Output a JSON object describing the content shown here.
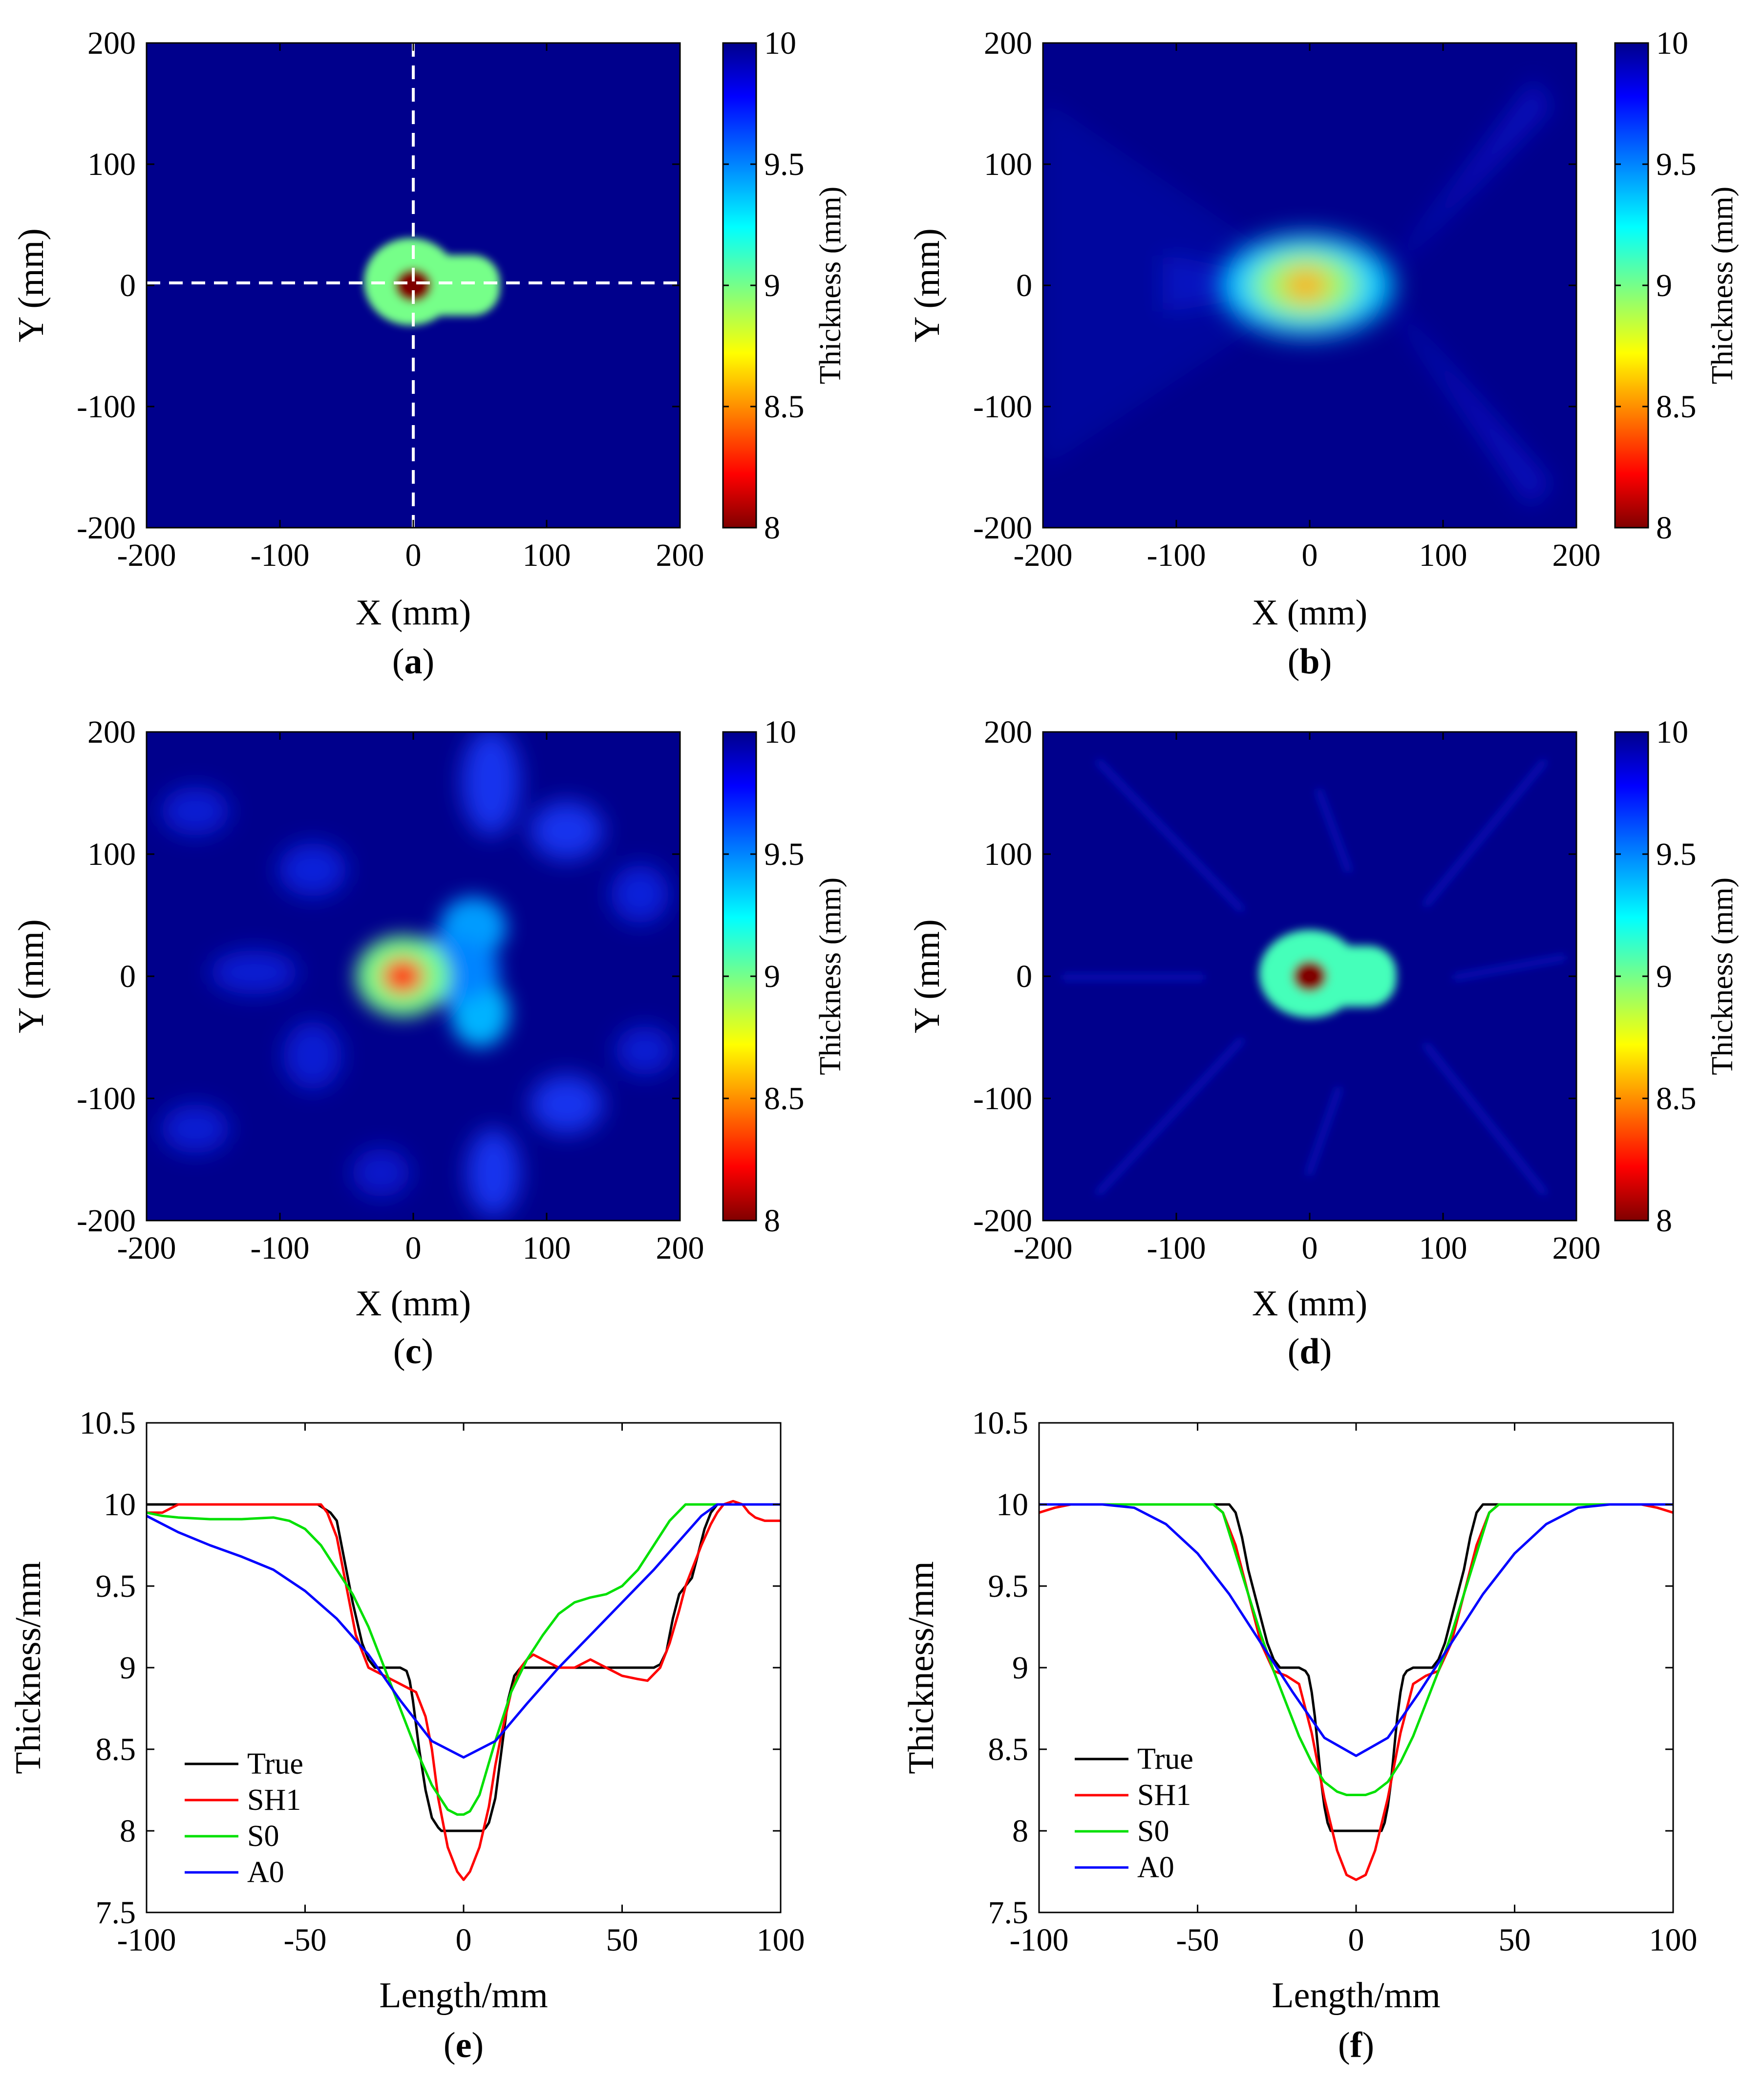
{
  "colors": {
    "true": "#000000",
    "sh1": "#ff0000",
    "s0": "#00e000",
    "a0": "#0000ff",
    "background": "#00008c",
    "dashed": "#ffffff"
  },
  "chart_data": [
    {
      "id": "a",
      "panel_label": "a",
      "type": "heatmap",
      "xlabel": "X (mm)",
      "ylabel": "Y (mm)",
      "xlim": [
        -200,
        200
      ],
      "ylim": [
        -200,
        200
      ],
      "xticks": [
        "-200",
        "-100",
        "0",
        "100",
        "200"
      ],
      "yticks": [
        "-200",
        "-100",
        "0",
        "100",
        "200"
      ],
      "colorbar": {
        "label": "Thickness (mm)",
        "min": 8,
        "max": 10,
        "ticks": [
          "8",
          "8.5",
          "9",
          "9.5",
          "10"
        ]
      },
      "dashed_cross": {
        "x": 0,
        "y": 2
      },
      "features": [
        {
          "shape": "rect",
          "cx": 15,
          "cy": 0,
          "w": 100,
          "h": 50,
          "value": 9.0
        },
        {
          "shape": "blob",
          "cx": -2,
          "cy": 3,
          "rx": 35,
          "ry": 36,
          "value": 9.0
        },
        {
          "shape": "blob",
          "cx": 0,
          "cy": 0,
          "rx": 14,
          "ry": 14,
          "value": 8.0
        }
      ]
    },
    {
      "id": "b",
      "panel_label": "b",
      "type": "heatmap",
      "xlabel": "X (mm)",
      "ylabel": "Y (mm)",
      "xlim": [
        -200,
        200
      ],
      "ylim": [
        -200,
        200
      ],
      "xticks": [
        "-200",
        "-100",
        "0",
        "100",
        "200"
      ],
      "yticks": [
        "-200",
        "-100",
        "0",
        "100",
        "200"
      ],
      "colorbar": {
        "label": "Thickness (mm)",
        "min": 8,
        "max": 10,
        "ticks": [
          "8",
          "8.5",
          "9",
          "9.5",
          "10"
        ]
      },
      "features": [
        {
          "shape": "blob",
          "cx": -2,
          "cy": 0,
          "rx": 65,
          "ry": 42,
          "value": 9.35
        },
        {
          "shape": "blob",
          "cx": -3,
          "cy": 0,
          "rx": 40,
          "ry": 28,
          "value": 8.95
        },
        {
          "shape": "blob",
          "cx": -3,
          "cy": 0,
          "rx": 18,
          "ry": 14,
          "value": 8.55
        }
      ]
    },
    {
      "id": "c",
      "panel_label": "c",
      "type": "heatmap",
      "xlabel": "X (mm)",
      "ylabel": "Y (mm)",
      "xlim": [
        -200,
        200
      ],
      "ylim": [
        -200,
        200
      ],
      "xticks": [
        "-200",
        "-100",
        "0",
        "100",
        "200"
      ],
      "yticks": [
        "-200",
        "-100",
        "0",
        "100",
        "200"
      ],
      "colorbar": {
        "label": "Thickness (mm)",
        "min": 8,
        "max": 10,
        "ticks": [
          "8",
          "8.5",
          "9",
          "9.5",
          "10"
        ]
      },
      "features": [
        {
          "shape": "blob",
          "cx": 45,
          "cy": 40,
          "rx": 25,
          "ry": 25,
          "value": 9.45
        },
        {
          "shape": "blob",
          "cx": 50,
          "cy": -30,
          "rx": 22,
          "ry": 28,
          "value": 9.4
        },
        {
          "shape": "blob",
          "cx": 20,
          "cy": 5,
          "rx": 45,
          "ry": 28,
          "value": 9.5
        },
        {
          "shape": "blob",
          "cx": -8,
          "cy": 0,
          "rx": 35,
          "ry": 33,
          "value": 9.0
        },
        {
          "shape": "blob",
          "cx": -8,
          "cy": 0,
          "rx": 16,
          "ry": 15,
          "value": 8.3
        }
      ]
    },
    {
      "id": "d",
      "panel_label": "d",
      "type": "heatmap",
      "xlabel": "X (mm)",
      "ylabel": "Y (mm)",
      "xlim": [
        -200,
        200
      ],
      "ylim": [
        -200,
        200
      ],
      "xticks": [
        "-200",
        "-100",
        "0",
        "100",
        "200"
      ],
      "yticks": [
        "-200",
        "-100",
        "0",
        "100",
        "200"
      ],
      "colorbar": {
        "label": "Thickness (mm)",
        "min": 8,
        "max": 10,
        "ticks": [
          "8",
          "8.5",
          "9",
          "9.5",
          "10"
        ]
      },
      "features": [
        {
          "shape": "rect",
          "cx": 15,
          "cy": 0,
          "w": 100,
          "h": 50,
          "value": 9.1
        },
        {
          "shape": "blob",
          "cx": 0,
          "cy": 2,
          "rx": 38,
          "ry": 36,
          "value": 9.1
        },
        {
          "shape": "blob",
          "cx": 0,
          "cy": 0,
          "rx": 13,
          "ry": 13,
          "value": 8.0
        }
      ]
    },
    {
      "id": "e",
      "panel_label": "e",
      "type": "line",
      "xlabel": "Length/mm",
      "ylabel": "Thickness/mm",
      "xlim": [
        -100,
        100
      ],
      "ylim": [
        7.5,
        10.5
      ],
      "xticks": [
        "-100",
        "-50",
        "0",
        "50",
        "100"
      ],
      "yticks": [
        "7.5",
        "8",
        "8.5",
        "9",
        "9.5",
        "10",
        "10.5"
      ],
      "legend": [
        "True",
        "SH1",
        "S0",
        "A0"
      ],
      "series": [
        {
          "name": "True",
          "color_key": "true",
          "x": [
            -100,
            -46,
            -42,
            -40,
            -38,
            -35,
            -32,
            -30,
            -28,
            -25,
            -22,
            -20,
            -18,
            -17,
            -16,
            -14,
            -12,
            -10,
            -8,
            -7,
            -6,
            -5,
            0,
            5,
            6,
            7,
            8,
            10,
            12,
            14,
            16,
            18,
            20,
            22,
            25,
            30,
            40,
            50,
            55,
            60,
            62,
            64,
            65,
            66,
            68,
            70,
            72,
            74,
            76,
            78,
            80,
            82,
            84,
            100
          ],
          "y": [
            10,
            10,
            9.95,
            9.9,
            9.7,
            9.4,
            9.15,
            9.05,
            9.0,
            9.0,
            9.0,
            9.0,
            8.98,
            8.92,
            8.8,
            8.5,
            8.25,
            8.08,
            8.02,
            8.0,
            8.0,
            8.0,
            8.0,
            8.0,
            8.0,
            8.02,
            8.05,
            8.2,
            8.5,
            8.8,
            8.95,
            9.0,
            9.0,
            9.0,
            9.0,
            9.0,
            9.0,
            9.0,
            9.0,
            9.0,
            9.02,
            9.1,
            9.2,
            9.3,
            9.45,
            9.5,
            9.55,
            9.7,
            9.85,
            9.95,
            10.0,
            10.0,
            10.0,
            10.0
          ]
        },
        {
          "name": "SH1",
          "color_key": "sh1",
          "x": [
            -100,
            -95,
            -90,
            -45,
            -43,
            -40,
            -37,
            -34,
            -30,
            -25,
            -22,
            -20,
            -18,
            -15,
            -12,
            -10,
            -8,
            -5,
            -2,
            0,
            2,
            5,
            8,
            10,
            12,
            15,
            18,
            20,
            22,
            25,
            30,
            35,
            40,
            45,
            50,
            55,
            58,
            62,
            65,
            68,
            70,
            72,
            75,
            78,
            80,
            82,
            85,
            88,
            90,
            92,
            95,
            100
          ],
          "y": [
            9.95,
            9.95,
            10.0,
            10.0,
            9.95,
            9.8,
            9.5,
            9.2,
            9.0,
            8.95,
            8.92,
            8.9,
            8.88,
            8.85,
            8.7,
            8.5,
            8.2,
            7.9,
            7.75,
            7.7,
            7.75,
            7.9,
            8.15,
            8.4,
            8.6,
            8.85,
            9.0,
            9.05,
            9.08,
            9.05,
            9.0,
            9.0,
            9.05,
            9.0,
            8.95,
            8.93,
            8.92,
            9.0,
            9.15,
            9.35,
            9.5,
            9.6,
            9.75,
            9.88,
            9.95,
            10.0,
            10.02,
            10.0,
            9.95,
            9.92,
            9.9,
            9.9
          ]
        },
        {
          "name": "S0",
          "color_key": "s0",
          "x": [
            -100,
            -95,
            -90,
            -80,
            -70,
            -60,
            -55,
            -50,
            -45,
            -40,
            -35,
            -30,
            -25,
            -20,
            -15,
            -10,
            -5,
            -2,
            0,
            2,
            5,
            10,
            15,
            20,
            25,
            30,
            35,
            40,
            45,
            50,
            55,
            60,
            65,
            70,
            75,
            80,
            100
          ],
          "y": [
            9.95,
            9.93,
            9.92,
            9.91,
            9.91,
            9.92,
            9.9,
            9.85,
            9.75,
            9.6,
            9.45,
            9.25,
            9.0,
            8.75,
            8.5,
            8.28,
            8.13,
            8.1,
            8.1,
            8.12,
            8.22,
            8.55,
            8.85,
            9.05,
            9.2,
            9.33,
            9.4,
            9.43,
            9.45,
            9.5,
            9.6,
            9.75,
            9.9,
            10.0,
            10.0,
            10.0,
            10.0
          ]
        },
        {
          "name": "A0",
          "color_key": "a0",
          "x": [
            -100,
            -95,
            -90,
            -80,
            -70,
            -60,
            -50,
            -40,
            -30,
            -20,
            -10,
            0,
            10,
            20,
            30,
            40,
            50,
            60,
            70,
            75,
            80,
            100
          ],
          "y": [
            9.93,
            9.88,
            9.83,
            9.75,
            9.68,
            9.6,
            9.47,
            9.3,
            9.08,
            8.8,
            8.55,
            8.45,
            8.55,
            8.78,
            9.0,
            9.2,
            9.4,
            9.6,
            9.82,
            9.93,
            10.0,
            10.0
          ]
        }
      ]
    },
    {
      "id": "f",
      "panel_label": "f",
      "type": "line",
      "xlabel": "Length/mm",
      "ylabel": "Thickness/mm",
      "xlim": [
        -100,
        100
      ],
      "ylim": [
        7.5,
        10.5
      ],
      "xticks": [
        "-100",
        "-50",
        "0",
        "50",
        "100"
      ],
      "yticks": [
        "7.5",
        "8",
        "8.5",
        "9",
        "9.5",
        "10",
        "10.5"
      ],
      "legend": [
        "True",
        "SH1",
        "S0",
        "A0"
      ],
      "series": [
        {
          "name": "True",
          "color_key": "true",
          "x": [
            -100,
            -40,
            -38,
            -36,
            -34,
            -30,
            -28,
            -26,
            -24,
            -22,
            -20,
            -18,
            -16,
            -15,
            -14,
            -13,
            -12,
            -11,
            -10,
            -9,
            -8,
            -6,
            0,
            6,
            8,
            9,
            10,
            11,
            12,
            13,
            14,
            15,
            16,
            18,
            20,
            22,
            24,
            26,
            28,
            30,
            34,
            36,
            38,
            40,
            100
          ],
          "y": [
            10,
            10,
            9.95,
            9.8,
            9.6,
            9.3,
            9.15,
            9.05,
            9.0,
            9.0,
            9.0,
            9.0,
            8.98,
            8.95,
            8.85,
            8.7,
            8.5,
            8.3,
            8.15,
            8.05,
            8.0,
            8.0,
            8.0,
            8.0,
            8.0,
            8.05,
            8.15,
            8.3,
            8.5,
            8.7,
            8.85,
            8.95,
            8.98,
            9.0,
            9.0,
            9.0,
            9.0,
            9.05,
            9.15,
            9.3,
            9.6,
            9.8,
            9.95,
            10.0,
            10.0
          ]
        },
        {
          "name": "SH1",
          "color_key": "sh1",
          "x": [
            -100,
            -95,
            -90,
            -80,
            -45,
            -42,
            -38,
            -34,
            -30,
            -26,
            -22,
            -18,
            -14,
            -10,
            -6,
            -3,
            0,
            3,
            6,
            10,
            14,
            18,
            22,
            26,
            30,
            34,
            38,
            42,
            45,
            80,
            90,
            95,
            100
          ],
          "y": [
            9.95,
            9.98,
            10.0,
            10.0,
            10.0,
            9.95,
            9.75,
            9.45,
            9.15,
            8.98,
            8.95,
            8.9,
            8.6,
            8.2,
            7.88,
            7.73,
            7.7,
            7.73,
            7.88,
            8.2,
            8.6,
            8.9,
            8.95,
            8.98,
            9.15,
            9.45,
            9.75,
            9.95,
            10.0,
            10.0,
            10.0,
            9.98,
            9.95
          ]
        },
        {
          "name": "S0",
          "color_key": "s0",
          "x": [
            -100,
            -45,
            -42,
            -38,
            -34,
            -30,
            -26,
            -22,
            -18,
            -14,
            -10,
            -6,
            -3,
            0,
            3,
            6,
            10,
            14,
            18,
            22,
            26,
            30,
            34,
            38,
            42,
            45,
            100
          ],
          "y": [
            10.0,
            10.0,
            9.95,
            9.7,
            9.45,
            9.2,
            8.98,
            8.78,
            8.58,
            8.42,
            8.3,
            8.24,
            8.22,
            8.22,
            8.22,
            8.24,
            8.3,
            8.42,
            8.58,
            8.78,
            8.98,
            9.2,
            9.45,
            9.7,
            9.95,
            10.0,
            10.0
          ]
        },
        {
          "name": "A0",
          "color_key": "a0",
          "x": [
            -100,
            -90,
            -80,
            -70,
            -60,
            -50,
            -40,
            -30,
            -20,
            -10,
            0,
            10,
            20,
            30,
            40,
            50,
            60,
            70,
            80,
            90,
            100
          ],
          "y": [
            10.0,
            10.0,
            10.0,
            9.98,
            9.88,
            9.7,
            9.45,
            9.15,
            8.85,
            8.57,
            8.46,
            8.57,
            8.85,
            9.15,
            9.45,
            9.7,
            9.88,
            9.98,
            10.0,
            10.0,
            10.0
          ]
        }
      ]
    }
  ]
}
